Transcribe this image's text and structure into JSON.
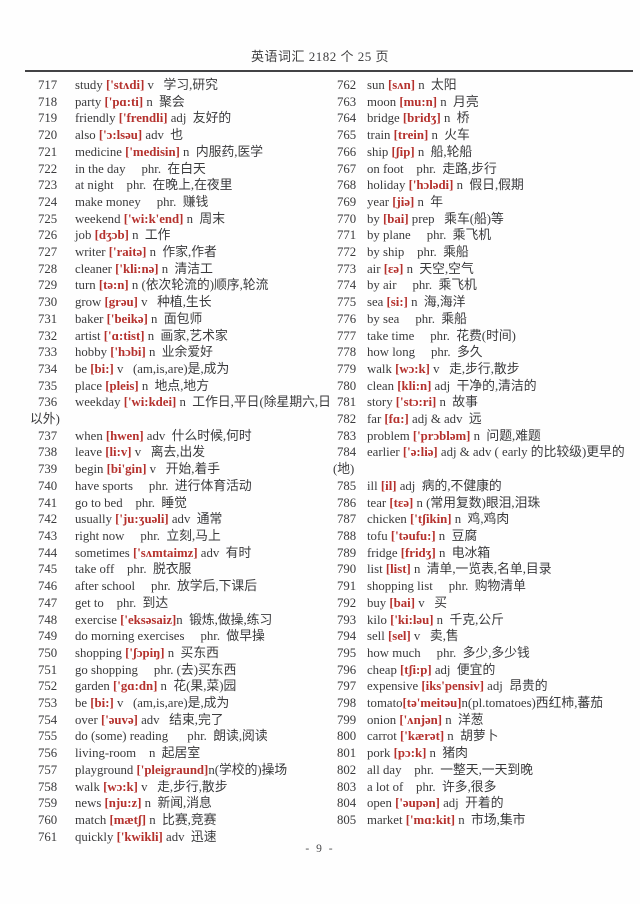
{
  "header": {
    "title": "英语词汇 2182 个  25 页"
  },
  "footer": {
    "page_number": "- 9 -"
  },
  "colors": {
    "phonetic_red": "#b5312d",
    "text": "#3a3a3c",
    "rule": "#434345"
  },
  "entries_left": [
    {
      "num": "717",
      "word": "study ",
      "phon": "['stʌdi]",
      "rest": " v   学习,研究"
    },
    {
      "num": "718",
      "word": "party ",
      "phon": "['pɑ:ti]",
      "rest": " n  聚会"
    },
    {
      "num": "719",
      "word": "friendly ",
      "phon": "['frendli]",
      "rest": " adj  友好的"
    },
    {
      "num": "720",
      "word": "also ",
      "phon": "['ɔ:lsəu]",
      "rest": " adv  也"
    },
    {
      "num": "721",
      "word": "medicine ",
      "phon": "['medisin]",
      "rest": " n  内服药,医学"
    },
    {
      "num": "722",
      "word": "in the day",
      "phon": "",
      "rest": "     phr.  在白天"
    },
    {
      "num": "723",
      "word": "at night",
      "phon": "",
      "rest": "    phr.  在晚上,在夜里"
    },
    {
      "num": "724",
      "word": "make money",
      "phon": "",
      "rest": "     phr.  赚钱"
    },
    {
      "num": "725",
      "word": "weekend ",
      "phon": "['wi:k'end]",
      "rest": " n  周末"
    },
    {
      "num": "726",
      "word": "job ",
      "phon": "[dʒɔb]",
      "rest": " n  工作"
    },
    {
      "num": "727",
      "word": "writer ",
      "phon": "['raitə]",
      "rest": " n  作家,作者"
    },
    {
      "num": "728",
      "word": "cleaner ",
      "phon": "['kli:nə]",
      "rest": " n  清洁工"
    },
    {
      "num": "729",
      "word": "turn ",
      "phon": "[tə:n]",
      "rest": " n (依次轮流的)顺序,轮流"
    },
    {
      "num": "730",
      "word": "grow ",
      "phon": "[grəu]",
      "rest": " v   种植,生长"
    },
    {
      "num": "731",
      "word": "baker ",
      "phon": "['beikə]",
      "rest": " n  面包师"
    },
    {
      "num": "732",
      "word": "artist ",
      "phon": "['ɑ:tist]",
      "rest": " n  画家,艺术家"
    },
    {
      "num": "733",
      "word": "hobby ",
      "phon": "['hɔbi]",
      "rest": " n  业余爱好"
    },
    {
      "num": "734",
      "word": "be ",
      "phon": "[bi:]",
      "rest": " v   (am,is,are)是,成为"
    },
    {
      "num": "735",
      "word": "place ",
      "phon": "[pleis]",
      "rest": " n  地点,地方"
    },
    {
      "num": "736",
      "word": "weekday ",
      "phon": "['wi:kdei]",
      "rest": " n  工作日,平日(除星期六,日以外)"
    },
    {
      "num": "737",
      "word": "when ",
      "phon": "[hwen]",
      "rest": " adv  什么时候,何时"
    },
    {
      "num": "738",
      "word": "leave ",
      "phon": "[li:v]",
      "rest": " v   离去,出发"
    },
    {
      "num": "739",
      "word": "begin ",
      "phon": "[bi'gin]",
      "rest": " v   开始,着手"
    },
    {
      "num": "740",
      "word": "have sports",
      "phon": "",
      "rest": "     phr.  进行体育活动"
    },
    {
      "num": "741",
      "word": "go to bed",
      "phon": "",
      "rest": "    phr.  睡觉"
    },
    {
      "num": "742",
      "word": "usually ",
      "phon": "['ju:ʒuəli]",
      "rest": " adv  通常"
    },
    {
      "num": "743",
      "word": "right now",
      "phon": "",
      "rest": "     phr.  立刻,马上"
    },
    {
      "num": "744",
      "word": "sometimes ",
      "phon": "['sʌmtaimz]",
      "rest": " adv  有时"
    },
    {
      "num": "745",
      "word": "take off",
      "phon": "",
      "rest": "    phr.  脱衣服"
    },
    {
      "num": "746",
      "word": "after school",
      "phon": "",
      "rest": "     phr.  放学后,下课后"
    },
    {
      "num": "747",
      "word": "get to",
      "phon": "",
      "rest": "    phr.  到达"
    },
    {
      "num": "748",
      "word": "exercise ",
      "phon": "['eksəsaiz]",
      "rest": "n  锻炼,做操,练习"
    },
    {
      "num": "749",
      "word": "do morning exercises",
      "phon": "",
      "rest": "     phr.  做早操"
    },
    {
      "num": "750",
      "word": "shopping ",
      "phon": "['ʃɔpiŋ]",
      "rest": " n  买东西"
    },
    {
      "num": "751",
      "word": "go shopping",
      "phon": "",
      "rest": "     phr. (去)买东西"
    },
    {
      "num": "752",
      "word": "garden ",
      "phon": "['gɑ:dn]",
      "rest": " n  花(果,菜)园"
    },
    {
      "num": "753",
      "word": "be ",
      "phon": "[bi:]",
      "rest": " v   (am,is,are)是,成为"
    },
    {
      "num": "754",
      "word": "over ",
      "phon": "['əuvə]",
      "rest": " adv   结束,完了"
    },
    {
      "num": "755",
      "word": "do (some) reading",
      "phon": "",
      "rest": "      phr.  朗读,阅读"
    },
    {
      "num": "756",
      "word": "living-room",
      "phon": "",
      "rest": "    n  起居室"
    },
    {
      "num": "757",
      "word": "playground ",
      "phon": "['pleigraund]",
      "rest": "n(学校的)操场"
    },
    {
      "num": "758",
      "word": "walk ",
      "phon": "[wɔ:k]",
      "rest": " v   走,步行,散步"
    },
    {
      "num": "759",
      "word": "news ",
      "phon": "[nju:z]",
      "rest": " n  新闻,消息"
    },
    {
      "num": "760",
      "word": "match ",
      "phon": "[mætʃ]",
      "rest": " n  比赛,竞赛"
    },
    {
      "num": "761",
      "word": "quickly ",
      "phon": "['kwikli]",
      "rest": " adv  迅速"
    }
  ],
  "entries_right": [
    {
      "num": "762",
      "word": "sun ",
      "phon": "[sʌn]",
      "rest": " n  太阳"
    },
    {
      "num": "763",
      "word": "moon ",
      "phon": "[mu:n]",
      "rest": " n  月亮"
    },
    {
      "num": "764",
      "word": "bridge ",
      "phon": "[bridʒ]",
      "rest": " n  桥"
    },
    {
      "num": "765",
      "word": "train ",
      "phon": "[trein]",
      "rest": " n  火车"
    },
    {
      "num": "766",
      "word": "ship ",
      "phon": "[ʃip]",
      "rest": " n  船,轮船"
    },
    {
      "num": "767",
      "word": "on foot",
      "phon": "",
      "rest": "    phr.  走路,步行"
    },
    {
      "num": "768",
      "word": "holiday ",
      "phon": "['hɔlədi]",
      "rest": " n  假日,假期"
    },
    {
      "num": "769",
      "word": "year ",
      "phon": "[jiə]",
      "rest": " n  年"
    },
    {
      "num": "770",
      "word": "by ",
      "phon": "[bai]",
      "rest": " prep   乘车(船)等"
    },
    {
      "num": "771",
      "word": "by plane",
      "phon": "",
      "rest": "     phr.  乘飞机"
    },
    {
      "num": "772",
      "word": "by ship",
      "phon": "",
      "rest": "    phr.  乘船"
    },
    {
      "num": "773",
      "word": "air ",
      "phon": "[ɛə]",
      "rest": " n  天空,空气"
    },
    {
      "num": "774",
      "word": "by air",
      "phon": "",
      "rest": "     phr.  乘飞机"
    },
    {
      "num": "775",
      "word": "sea ",
      "phon": "[si:]",
      "rest": " n  海,海洋"
    },
    {
      "num": "776",
      "word": "by sea",
      "phon": "",
      "rest": "     phr.  乘船"
    },
    {
      "num": "777",
      "word": "take time",
      "phon": "",
      "rest": "     phr.  花费(时间)"
    },
    {
      "num": "778",
      "word": "how long",
      "phon": "",
      "rest": "     phr.  多久"
    },
    {
      "num": "779",
      "word": "walk ",
      "phon": "[wɔ:k]",
      "rest": " v   走,步行,散步"
    },
    {
      "num": "780",
      "word": "clean ",
      "phon": "[kli:n]",
      "rest": " adj  干净的,清洁的"
    },
    {
      "num": "781",
      "word": "story ",
      "phon": "['stɔ:ri]",
      "rest": " n  故事"
    },
    {
      "num": "782",
      "word": "far ",
      "phon": "[fɑ:]",
      "rest": " adj & adv  远"
    },
    {
      "num": "783",
      "word": "problem ",
      "phon": "['prɔbləm]",
      "rest": " n  问题,难题"
    },
    {
      "num": "784",
      "word": "earlier ",
      "phon": "['ə:liə]",
      "rest": " adj & adv ( early 的比较级)更早的(地)"
    },
    {
      "num": "785",
      "word": "ill ",
      "phon": "[il]",
      "rest": " adj  病的,不健康的"
    },
    {
      "num": "786",
      "word": "tear ",
      "phon": "[tɛə]",
      "rest": " n (常用复数)眼泪,泪珠"
    },
    {
      "num": "787",
      "word": "chicken ",
      "phon": "['tʃikin]",
      "rest": " n  鸡,鸡肉"
    },
    {
      "num": "788",
      "word": "tofu ",
      "phon": "['təufu:]",
      "rest": " n  豆腐"
    },
    {
      "num": "789",
      "word": "fridge ",
      "phon": "[fridʒ]",
      "rest": " n  电冰箱"
    },
    {
      "num": "790",
      "word": "list ",
      "phon": "[list]",
      "rest": " n  清单,一览表,名单,目录"
    },
    {
      "num": "791",
      "word": "shopping list",
      "phon": "",
      "rest": "     phr.  购物清单"
    },
    {
      "num": "792",
      "word": "buy ",
      "phon": "[bai]",
      "rest": " v   买"
    },
    {
      "num": "793",
      "word": "kilo ",
      "phon": "['ki:ləu]",
      "rest": " n  千克,公斤"
    },
    {
      "num": "794",
      "word": "sell ",
      "phon": "[sel]",
      "rest": " v   卖,售"
    },
    {
      "num": "795",
      "word": "how much",
      "phon": "",
      "rest": "     phr.  多少,多少钱"
    },
    {
      "num": "796",
      "word": "cheap ",
      "phon": "[tʃi:p]",
      "rest": " adj  便宜的"
    },
    {
      "num": "797",
      "word": "expensive ",
      "phon": "[iks'pensiv]",
      "rest": " adj  昂贵的"
    },
    {
      "num": "798",
      "word": "tomato",
      "phon": "[tə'meitəu]",
      "rest": "n(pl.tomatoes)西红柿,蕃茄"
    },
    {
      "num": "799",
      "word": "onion ",
      "phon": "['ʌnjən]",
      "rest": " n  洋葱"
    },
    {
      "num": "800",
      "word": "carrot ",
      "phon": "['kærət]",
      "rest": " n  胡萝卜"
    },
    {
      "num": "801",
      "word": "pork ",
      "phon": "[pɔ:k]",
      "rest": " n  猪肉"
    },
    {
      "num": "802",
      "word": "all day",
      "phon": "",
      "rest": "    phr.  一整天,一天到晚"
    },
    {
      "num": "803",
      "word": "a lot of",
      "phon": "",
      "rest": "    phr.  许多,很多"
    },
    {
      "num": "804",
      "word": "open ",
      "phon": "['əupən]",
      "rest": " adj  开着的"
    },
    {
      "num": "805",
      "word": "market ",
      "phon": "['mɑ:kit]",
      "rest": " n  市场,集市"
    }
  ]
}
